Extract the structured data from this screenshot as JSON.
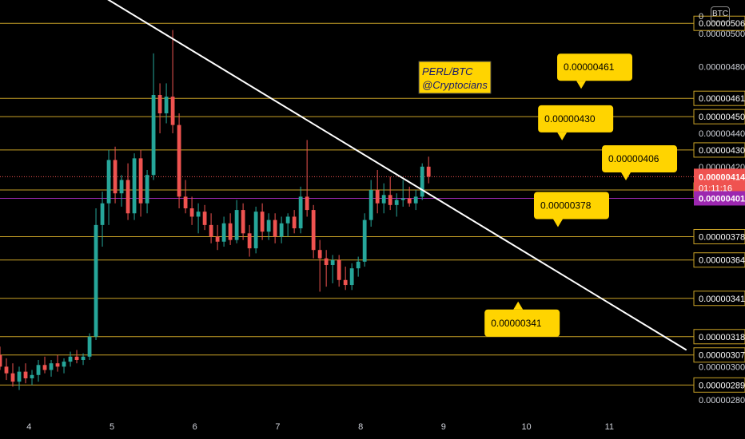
{
  "watermark": {
    "pair": "PERL/BTC",
    "author": "@Cryptocians"
  },
  "currency_badge": "BTC",
  "axis_zero_label": "0",
  "colors": {
    "up": "#26a69a",
    "down": "#ef5350",
    "level_line": "#c9a227",
    "trendline": "#ffffff",
    "callout": "#ffd400",
    "current_price": "#ef5350",
    "purple": "#9c27b0",
    "background": "#000000"
  },
  "chart_data": {
    "type": "candlestick",
    "title": "PERL/BTC",
    "x_ticks": [
      "4",
      "5",
      "6",
      "7",
      "8",
      "9",
      "10",
      "11"
    ],
    "y_ticks": [
      "0.00000280",
      "0.00000300",
      "0.00000420",
      "0.00000440",
      "0.00000480",
      "0.00000500"
    ],
    "xlim": [
      3.65,
      12.0
    ],
    "ylim": [
      2.7e-06,
      5.2e-06
    ],
    "horizontal_levels": [
      "0.00000506",
      "0.00000461",
      "0.00000450",
      "0.00000430",
      "0.00000406",
      "0.00000378",
      "0.00000364",
      "0.00000341",
      "0.00000318",
      "0.00000307",
      "0.00000289"
    ],
    "current_price": {
      "value": "0.00000414",
      "countdown": "01:11:16"
    },
    "purple_price": {
      "value": "0.00000401"
    },
    "trendline": {
      "from": [
        4.63,
        5.3e-06
      ],
      "to": [
        11.93,
        3.1e-06
      ]
    },
    "callouts": [
      {
        "text": "0.00000461",
        "pointer": "down",
        "x_at": 10.66
      },
      {
        "text": "0.00000430",
        "pointer": "down",
        "x_at": 10.43
      },
      {
        "text": "0.00000406",
        "pointer": "down",
        "x_at": 11.2
      },
      {
        "text": "0.00000378",
        "pointer": "down",
        "x_at": 10.38
      },
      {
        "text": "0.00000341",
        "pointer": "up",
        "x_at": 9.9
      }
    ],
    "candles": [
      {
        "o": 3.07e-06,
        "h": 3.12e-06,
        "l": 2.98e-06,
        "c": 3e-06
      },
      {
        "o": 3e-06,
        "h": 3.05e-06,
        "l": 2.92e-06,
        "c": 2.96e-06
      },
      {
        "o": 2.96e-06,
        "h": 3.02e-06,
        "l": 2.88e-06,
        "c": 2.91e-06
      },
      {
        "o": 2.91e-06,
        "h": 3e-06,
        "l": 2.86e-06,
        "c": 2.97e-06
      },
      {
        "o": 2.97e-06,
        "h": 3.02e-06,
        "l": 2.9e-06,
        "c": 2.93e-06
      },
      {
        "o": 2.93e-06,
        "h": 2.98e-06,
        "l": 2.89e-06,
        "c": 2.95e-06
      },
      {
        "o": 2.95e-06,
        "h": 3.04e-06,
        "l": 2.91e-06,
        "c": 3.01e-06
      },
      {
        "o": 3.01e-06,
        "h": 3.06e-06,
        "l": 2.96e-06,
        "c": 2.98e-06
      },
      {
        "o": 2.98e-06,
        "h": 3.04e-06,
        "l": 2.94e-06,
        "c": 3.02e-06
      },
      {
        "o": 3.02e-06,
        "h": 3.07e-06,
        "l": 2.97e-06,
        "c": 3e-06
      },
      {
        "o": 3e-06,
        "h": 3.05e-06,
        "l": 2.96e-06,
        "c": 3.03e-06
      },
      {
        "o": 3.03e-06,
        "h": 3.09e-06,
        "l": 3e-06,
        "c": 3.06e-06
      },
      {
        "o": 3.06e-06,
        "h": 3.1e-06,
        "l": 3.02e-06,
        "c": 3.04e-06
      },
      {
        "o": 3.04e-06,
        "h": 3.08e-06,
        "l": 3.01e-06,
        "c": 3.06e-06
      },
      {
        "o": 3.06e-06,
        "h": 3.2e-06,
        "l": 3.04e-06,
        "c": 3.18e-06
      },
      {
        "o": 3.18e-06,
        "h": 3.95e-06,
        "l": 3.16e-06,
        "c": 3.85e-06
      },
      {
        "o": 3.85e-06,
        "h": 4.05e-06,
        "l": 3.72e-06,
        "c": 3.98e-06
      },
      {
        "o": 3.98e-06,
        "h": 4.3e-06,
        "l": 3.85e-06,
        "c": 4.24e-06
      },
      {
        "o": 4.24e-06,
        "h": 4.32e-06,
        "l": 3.98e-06,
        "c": 4.04e-06
      },
      {
        "o": 4.04e-06,
        "h": 4.15e-06,
        "l": 3.96e-06,
        "c": 4.12e-06
      },
      {
        "o": 4.12e-06,
        "h": 4.22e-06,
        "l": 3.88e-06,
        "c": 3.92e-06
      },
      {
        "o": 3.92e-06,
        "h": 4.28e-06,
        "l": 3.88e-06,
        "c": 4.25e-06
      },
      {
        "o": 4.25e-06,
        "h": 4.3e-06,
        "l": 3.9e-06,
        "c": 3.98e-06
      },
      {
        "o": 3.98e-06,
        "h": 4.18e-06,
        "l": 3.92e-06,
        "c": 4.15e-06
      },
      {
        "o": 4.15e-06,
        "h": 4.88e-06,
        "l": 4.12e-06,
        "c": 4.63e-06
      },
      {
        "o": 4.63e-06,
        "h": 4.7e-06,
        "l": 4.4e-06,
        "c": 4.52e-06
      },
      {
        "o": 4.52e-06,
        "h": 4.7e-06,
        "l": 4.46e-06,
        "c": 4.62e-06
      },
      {
        "o": 4.62e-06,
        "h": 5.02e-06,
        "l": 4.4e-06,
        "c": 4.45e-06
      },
      {
        "o": 4.45e-06,
        "h": 4.52e-06,
        "l": 3.95e-06,
        "c": 4.02e-06
      },
      {
        "o": 4.02e-06,
        "h": 4.12e-06,
        "l": 3.92e-06,
        "c": 3.95e-06
      },
      {
        "o": 3.95e-06,
        "h": 4.02e-06,
        "l": 3.85e-06,
        "c": 3.9e-06
      },
      {
        "o": 3.9e-06,
        "h": 3.98e-06,
        "l": 3.8e-06,
        "c": 3.93e-06
      },
      {
        "o": 3.93e-06,
        "h": 3.97e-06,
        "l": 3.82e-06,
        "c": 3.85e-06
      },
      {
        "o": 3.85e-06,
        "h": 3.92e-06,
        "l": 3.74e-06,
        "c": 3.78e-06
      },
      {
        "o": 3.78e-06,
        "h": 3.85e-06,
        "l": 3.7e-06,
        "c": 3.75e-06
      },
      {
        "o": 3.75e-06,
        "h": 3.9e-06,
        "l": 3.72e-06,
        "c": 3.86e-06
      },
      {
        "o": 3.86e-06,
        "h": 3.92e-06,
        "l": 3.73e-06,
        "c": 3.76e-06
      },
      {
        "o": 3.76e-06,
        "h": 4e-06,
        "l": 3.74e-06,
        "c": 3.94e-06
      },
      {
        "o": 3.94e-06,
        "h": 3.98e-06,
        "l": 3.76e-06,
        "c": 3.8e-06
      },
      {
        "o": 3.8e-06,
        "h": 3.85e-06,
        "l": 3.66e-06,
        "c": 3.71e-06
      },
      {
        "o": 3.71e-06,
        "h": 3.96e-06,
        "l": 3.68e-06,
        "c": 3.93e-06
      },
      {
        "o": 3.93e-06,
        "h": 3.98e-06,
        "l": 3.76e-06,
        "c": 3.81e-06
      },
      {
        "o": 3.81e-06,
        "h": 3.92e-06,
        "l": 3.76e-06,
        "c": 3.88e-06
      },
      {
        "o": 3.88e-06,
        "h": 3.92e-06,
        "l": 3.74e-06,
        "c": 3.78e-06
      },
      {
        "o": 3.78e-06,
        "h": 3.9e-06,
        "l": 3.74e-06,
        "c": 3.86e-06
      },
      {
        "o": 3.86e-06,
        "h": 3.92e-06,
        "l": 3.78e-06,
        "c": 3.9e-06
      },
      {
        "o": 3.9e-06,
        "h": 3.94e-06,
        "l": 3.8e-06,
        "c": 3.83e-06
      },
      {
        "o": 3.83e-06,
        "h": 4.08e-06,
        "l": 3.8e-06,
        "c": 4.02e-06
      },
      {
        "o": 4.02e-06,
        "h": 4.36e-06,
        "l": 3.9e-06,
        "c": 3.94e-06
      },
      {
        "o": 3.94e-06,
        "h": 3.97e-06,
        "l": 3.65e-06,
        "c": 3.7e-06
      },
      {
        "o": 3.7e-06,
        "h": 3.76e-06,
        "l": 3.45e-06,
        "c": 3.65e-06
      },
      {
        "o": 3.65e-06,
        "h": 3.7e-06,
        "l": 3.48e-06,
        "c": 3.61e-06
      },
      {
        "o": 3.61e-06,
        "h": 3.67e-06,
        "l": 3.5e-06,
        "c": 3.64e-06
      },
      {
        "o": 3.64e-06,
        "h": 3.67e-06,
        "l": 3.48e-06,
        "c": 3.52e-06
      },
      {
        "o": 3.52e-06,
        "h": 3.6e-06,
        "l": 3.46e-06,
        "c": 3.49e-06
      },
      {
        "o": 3.49e-06,
        "h": 3.62e-06,
        "l": 3.46e-06,
        "c": 3.59e-06
      },
      {
        "o": 3.59e-06,
        "h": 3.66e-06,
        "l": 3.54e-06,
        "c": 3.63e-06
      },
      {
        "o": 3.63e-06,
        "h": 3.92e-06,
        "l": 3.6e-06,
        "c": 3.88e-06
      },
      {
        "o": 3.88e-06,
        "h": 4.12e-06,
        "l": 3.84e-06,
        "c": 4.06e-06
      },
      {
        "o": 4.06e-06,
        "h": 4.18e-06,
        "l": 3.92e-06,
        "c": 3.98e-06
      },
      {
        "o": 3.98e-06,
        "h": 4.1e-06,
        "l": 3.92e-06,
        "c": 4.03e-06
      },
      {
        "o": 4.03e-06,
        "h": 4.14e-06,
        "l": 3.94e-06,
        "c": 3.97e-06
      },
      {
        "o": 3.97e-06,
        "h": 4.04e-06,
        "l": 3.9e-06,
        "c": 4e-06
      },
      {
        "o": 4e-06,
        "h": 4.12e-06,
        "l": 3.96e-06,
        "c": 4.01e-06
      },
      {
        "o": 4.01e-06,
        "h": 4.08e-06,
        "l": 3.96e-06,
        "c": 3.98e-06
      },
      {
        "o": 3.98e-06,
        "h": 4.06e-06,
        "l": 3.94e-06,
        "c": 4.02e-06
      },
      {
        "o": 4.02e-06,
        "h": 4.22e-06,
        "l": 4e-06,
        "c": 4.2e-06
      },
      {
        "o": 4.2e-06,
        "h": 4.26e-06,
        "l": 4.1e-06,
        "c": 4.14e-06
      }
    ]
  }
}
